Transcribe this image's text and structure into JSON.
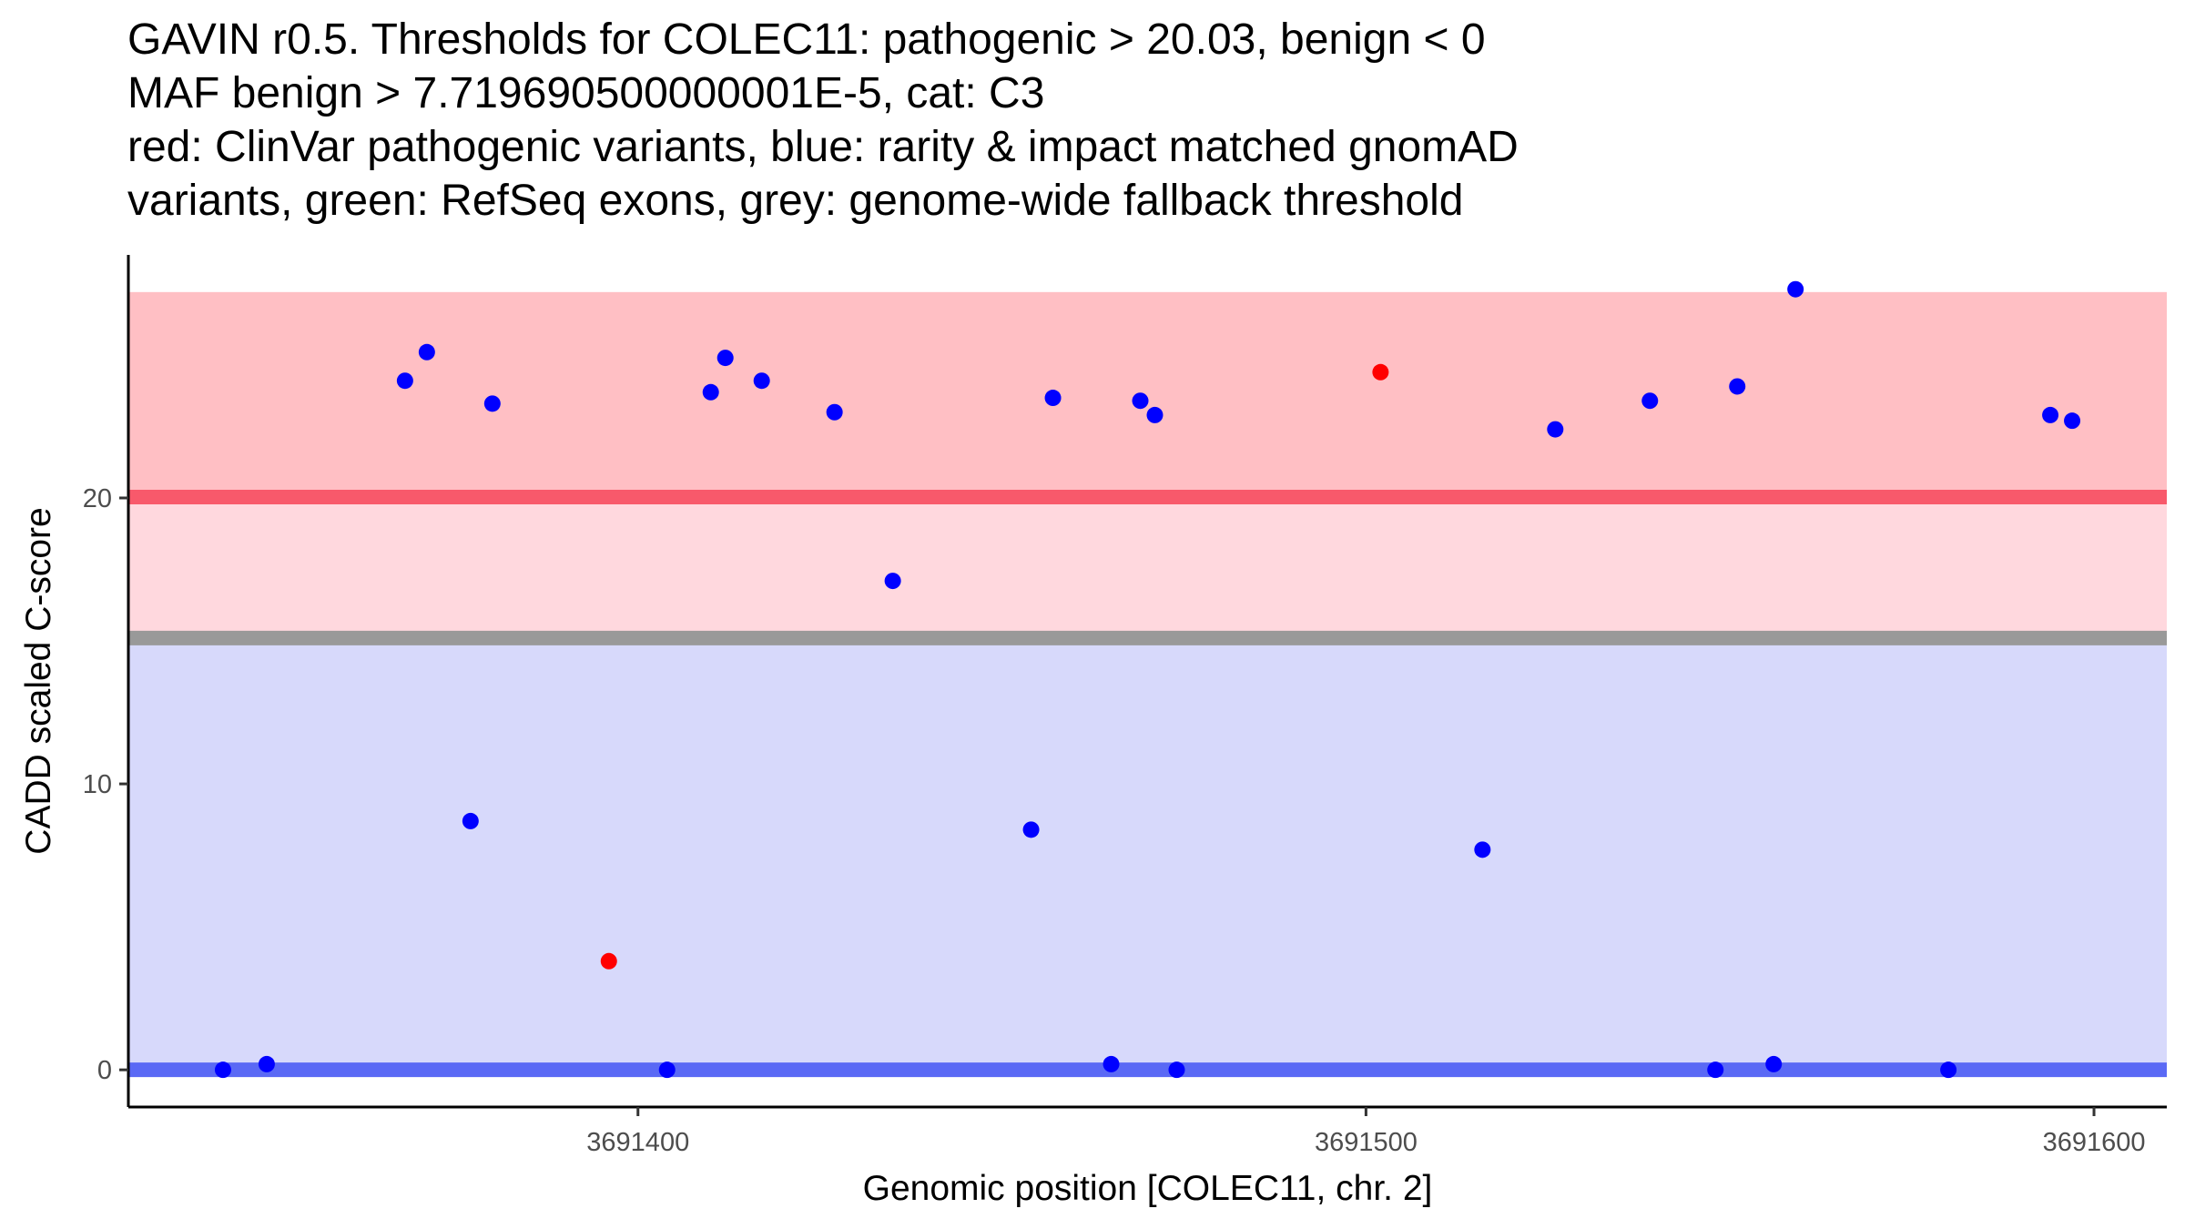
{
  "title_lines": [
    "GAVIN r0.5. Thresholds for COLEC11: pathogenic > 20.03, benign < 0",
    "MAF benign > 7.719690500000001E-5, cat: C3",
    "red: ClinVar pathogenic variants, blue: rarity & impact matched gnomAD",
    "variants, green: RefSeq exons, grey: genome-wide fallback threshold"
  ],
  "colors": {
    "pathogenic_band": "#ffbfc4",
    "uncertain_band": "#ffd8de",
    "benign_band": "#d7d9fb",
    "pathogenic_threshold": "#f8596b",
    "fallback_threshold": "#999999",
    "benign_threshold": "#5a69f5",
    "clinvar_point": "#ff0000",
    "gnomad_point": "#0000ff"
  },
  "chart_data": {
    "type": "scatter",
    "xlabel": "Genomic position [COLEC11, chr. 2]",
    "ylabel": "CADD scaled C-score",
    "xlim": [
      3691330,
      3691610
    ],
    "ylim": [
      -1.3,
      28.5
    ],
    "x_ticks": [
      {
        "value": 3691400,
        "label": "3691400"
      },
      {
        "value": 3691500,
        "label": "3691500"
      },
      {
        "value": 3691600,
        "label": "3691600"
      }
    ],
    "y_ticks": [
      {
        "value": 0,
        "label": "0"
      },
      {
        "value": 10,
        "label": "10"
      },
      {
        "value": 20,
        "label": "20"
      }
    ],
    "bands": [
      {
        "name": "benign-band",
        "ymin": 0,
        "ymax": 14.9,
        "color_key": "benign_band"
      },
      {
        "name": "uncertain-band",
        "ymin": 15.3,
        "ymax": 20.0,
        "color_key": "uncertain_band"
      },
      {
        "name": "pathogenic-band",
        "ymin": 20.0,
        "ymax": 27.2,
        "color_key": "pathogenic_band"
      }
    ],
    "thresholds": [
      {
        "name": "benign-threshold",
        "y": 0,
        "color_key": "benign_threshold"
      },
      {
        "name": "fallback-threshold",
        "y": 15.1,
        "color_key": "fallback_threshold"
      },
      {
        "name": "pathogenic-threshold",
        "y": 20.03,
        "color_key": "pathogenic_threshold"
      }
    ],
    "series": [
      {
        "name": "ClinVar pathogenic",
        "color_key": "clinvar_point",
        "points": [
          {
            "x": 3691396,
            "y": 3.8
          },
          {
            "x": 3691502,
            "y": 24.4
          }
        ]
      },
      {
        "name": "gnomAD matched",
        "color_key": "gnomad_point",
        "points": [
          {
            "x": 3691343,
            "y": 0.0
          },
          {
            "x": 3691349,
            "y": 0.2
          },
          {
            "x": 3691368,
            "y": 24.1
          },
          {
            "x": 3691371,
            "y": 25.1
          },
          {
            "x": 3691377,
            "y": 8.7
          },
          {
            "x": 3691380,
            "y": 23.3
          },
          {
            "x": 3691404,
            "y": 0.0
          },
          {
            "x": 3691410,
            "y": 23.7
          },
          {
            "x": 3691412,
            "y": 24.9
          },
          {
            "x": 3691417,
            "y": 24.1
          },
          {
            "x": 3691427,
            "y": 23.0
          },
          {
            "x": 3691435,
            "y": 17.1
          },
          {
            "x": 3691454,
            "y": 8.4
          },
          {
            "x": 3691457,
            "y": 23.5
          },
          {
            "x": 3691465,
            "y": 0.2
          },
          {
            "x": 3691469,
            "y": 23.4
          },
          {
            "x": 3691471,
            "y": 22.9
          },
          {
            "x": 3691474,
            "y": 0.0
          },
          {
            "x": 3691516,
            "y": 7.7
          },
          {
            "x": 3691526,
            "y": 22.4
          },
          {
            "x": 3691539,
            "y": 23.4
          },
          {
            "x": 3691548,
            "y": 0.0
          },
          {
            "x": 3691551,
            "y": 23.9
          },
          {
            "x": 3691556,
            "y": 0.2
          },
          {
            "x": 3691559,
            "y": 27.3
          },
          {
            "x": 3691580,
            "y": 0.0
          },
          {
            "x": 3691594,
            "y": 22.9
          },
          {
            "x": 3691597,
            "y": 22.7
          }
        ]
      }
    ]
  }
}
